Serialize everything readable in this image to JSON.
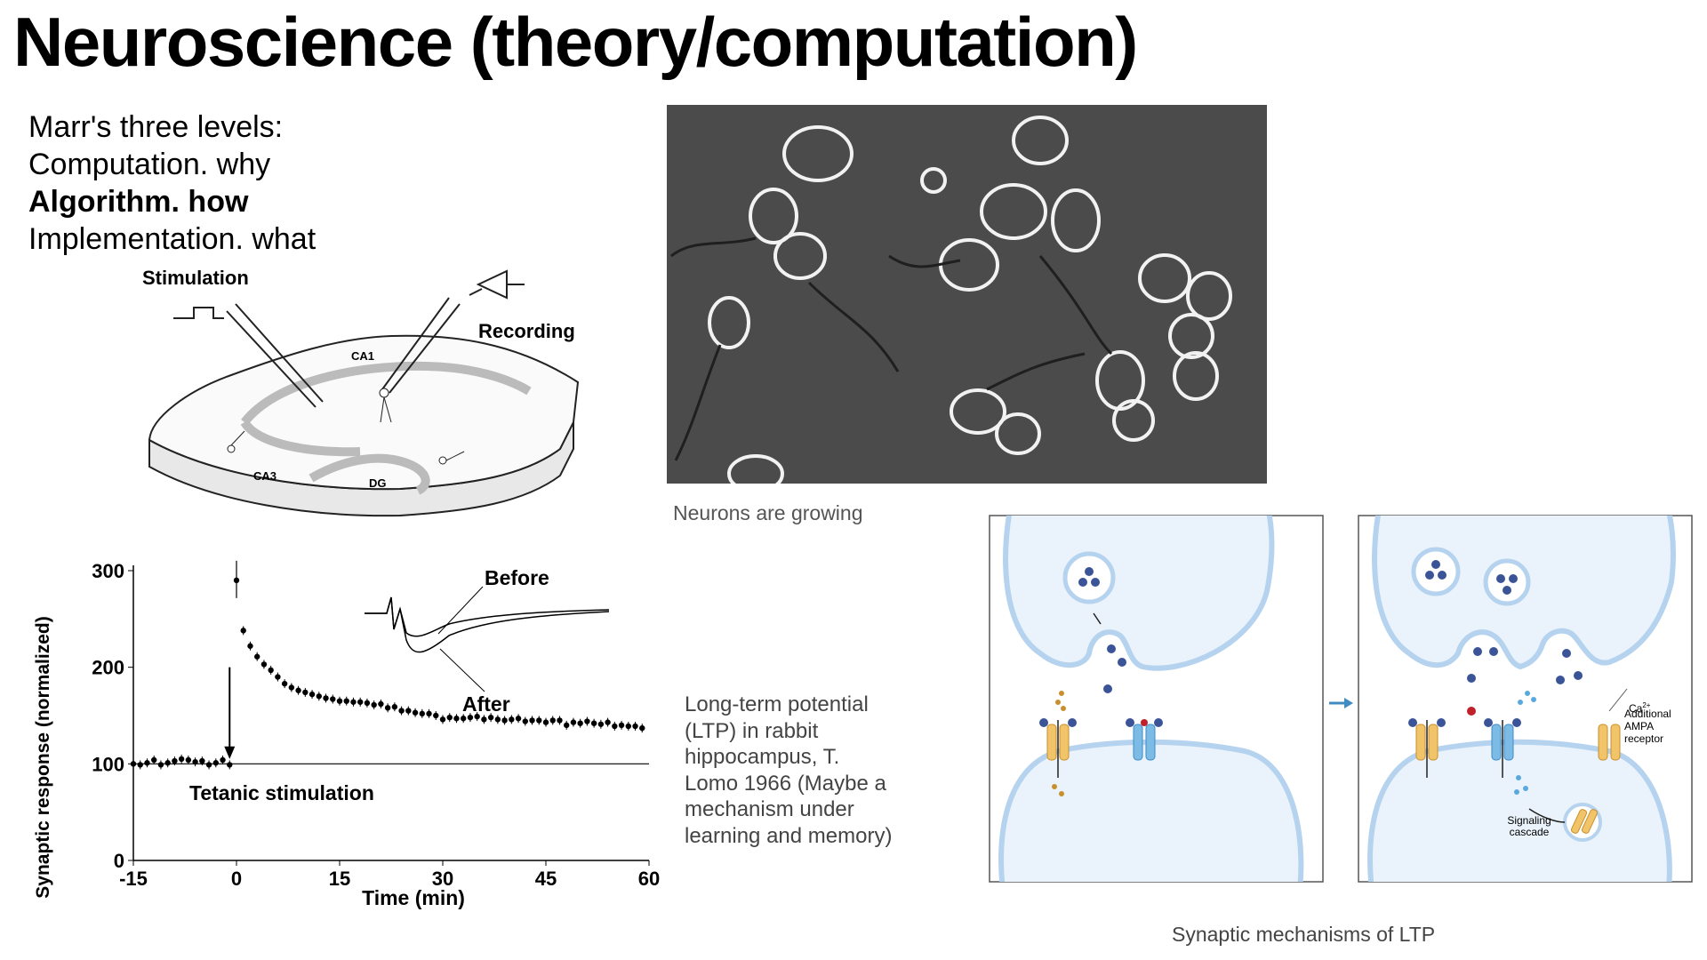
{
  "slide": {
    "title": "Neuroscience (theory/computation)",
    "marr": {
      "heading": "Marr's three levels:",
      "computation": "Computation. why",
      "algorithm": "Algorithm. how",
      "implementation": "Implementation. what"
    }
  },
  "hippocampus": {
    "stimulation": "Stimulation",
    "recording": "Recording",
    "ca1": "CA1",
    "ca3": "CA3",
    "dg": "DG"
  },
  "neurons_photo": {
    "caption": "Neurons are growing"
  },
  "ltp_caption": "Long-term potential (LTP) in rabbit hippocampus, T. Lomo 1966 (Maybe a mechanism under learning and memory)",
  "ltp_chart": {
    "before_label": "Before",
    "after_label": "After",
    "tetanic_label": "Tetanic stimulation"
  },
  "chart_data": {
    "type": "scatter",
    "title": "",
    "xlabel": "Time (min)",
    "ylabel": "Synaptic response (normalized)",
    "xlim": [
      -15,
      60
    ],
    "ylim": [
      0,
      300
    ],
    "xticks": [
      "-15",
      "0",
      "15",
      "30",
      "45",
      "60"
    ],
    "yticks": [
      "0",
      "100",
      "200",
      "300"
    ],
    "baseline": 100,
    "stimulus_time": -1,
    "annotations": [
      "Before",
      "After",
      "Tetanic stimulation"
    ],
    "series": [
      {
        "x": [
          -15,
          -14,
          -13,
          -12,
          -11,
          -10,
          -9,
          -8,
          -7,
          -6,
          -5,
          -4,
          -3,
          -2,
          -1
        ],
        "y": [
          100,
          99,
          101,
          104,
          99,
          101,
          103,
          105,
          104,
          102,
          103,
          99,
          101,
          104,
          99
        ]
      },
      {
        "x": [
          0,
          1,
          2,
          3,
          4,
          5,
          6,
          7,
          8,
          9,
          10,
          11,
          12,
          13,
          14,
          15,
          16,
          17,
          18,
          19,
          20,
          21,
          22,
          23,
          24,
          25,
          26,
          27,
          28,
          29,
          30,
          31,
          32,
          33,
          34,
          35,
          36,
          37,
          38,
          39,
          40,
          41,
          42,
          43,
          44,
          45,
          46,
          47,
          48,
          49,
          50,
          51,
          52,
          53,
          54,
          55,
          56,
          57,
          58,
          59
        ],
        "y": [
          290,
          238,
          222,
          211,
          203,
          197,
          190,
          183,
          179,
          176,
          174,
          172,
          170,
          168,
          167,
          165,
          165,
          164,
          164,
          163,
          161,
          162,
          158,
          159,
          155,
          155,
          153,
          152,
          152,
          150,
          146,
          148,
          147,
          147,
          148,
          149,
          146,
          148,
          146,
          145,
          146,
          147,
          144,
          145,
          145,
          143,
          145,
          145,
          140,
          143,
          142,
          144,
          142,
          141,
          143,
          139,
          140,
          139,
          139,
          137
        ]
      }
    ]
  },
  "ltp_mechanism": {
    "caption": "Synaptic mechanisms of LTP",
    "additional_ampa": [
      "Additional",
      "AMPA",
      "receptor"
    ],
    "ca": "Ca",
    "ca_sup": "2+",
    "signaling": [
      "Signaling",
      "cascade"
    ]
  }
}
